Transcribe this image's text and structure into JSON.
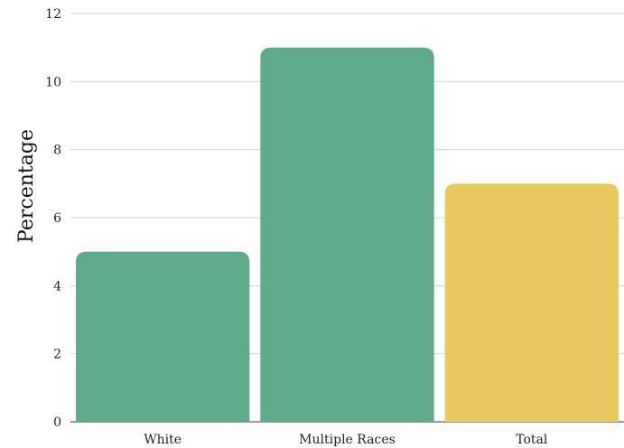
{
  "chart_data": {
    "type": "bar",
    "title": "",
    "xlabel": "",
    "ylabel": "Percentage",
    "ylim": [
      0,
      12
    ],
    "yticks": [
      0,
      2,
      4,
      6,
      8,
      10,
      12
    ],
    "grid": true,
    "categories": [
      "White",
      "Multiple Races",
      "Total"
    ],
    "values": [
      5,
      11,
      7
    ],
    "colors": [
      "#5faa8b",
      "#5faa8b",
      "#e9c95f"
    ]
  }
}
